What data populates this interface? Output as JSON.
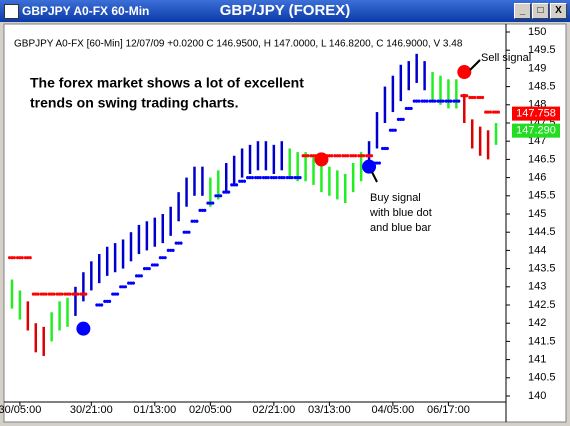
{
  "window_caption": "GBPJPY A0-FX 60-Min",
  "chart_data": {
    "type": "hilo",
    "title": "GBP/JPY (FOREX)",
    "info_line": "GBPJPY A0-FX [60-Min] 12/07/09 +0.0200 C 146.9500, H 147.0000, L 146.8200, C 146.9000, V 3.48",
    "annotation_lines": [
      "The forex market shows a lot of excellent",
      "trends on swing trading charts."
    ],
    "sell_label": "Sell signal",
    "buy_label_lines": [
      "Buy signal",
      "with blue dot",
      "and blue bar"
    ],
    "categories": [
      null,
      "30/05:00",
      null,
      null,
      null,
      null,
      null,
      null,
      null,
      null,
      "30/21:00",
      null,
      null,
      null,
      null,
      null,
      null,
      null,
      "01/13:00",
      null,
      null,
      null,
      null,
      null,
      null,
      "02/05:00",
      null,
      null,
      null,
      null,
      null,
      null,
      null,
      "02/21:00",
      null,
      null,
      null,
      null,
      null,
      null,
      "03/13:00",
      null,
      null,
      null,
      null,
      null,
      null,
      null,
      "04/05:00",
      null,
      null,
      null,
      null,
      null,
      null,
      "06/17:00",
      null,
      null,
      null,
      null,
      null,
      null
    ],
    "high": [
      143.2,
      142.9,
      142.6,
      142.0,
      141.9,
      142.3,
      142.6,
      142.7,
      143.0,
      143.4,
      143.7,
      143.9,
      144.1,
      144.2,
      144.3,
      144.5,
      144.7,
      144.8,
      144.9,
      145.0,
      145.2,
      145.6,
      146.0,
      146.3,
      146.3,
      146.0,
      146.2,
      146.4,
      146.6,
      146.8,
      146.9,
      147.0,
      147.0,
      146.9,
      147.0,
      146.8,
      146.7,
      146.7,
      146.6,
      146.4,
      146.3,
      146.2,
      146.1,
      146.4,
      146.7,
      147.0,
      147.8,
      148.5,
      148.8,
      149.1,
      149.2,
      149.4,
      149.2,
      148.9,
      148.8,
      148.7,
      148.7,
      148.3,
      147.6,
      147.4,
      147.3,
      147.5
    ],
    "low": [
      142.4,
      142.1,
      141.8,
      141.2,
      141.1,
      141.5,
      141.8,
      141.9,
      142.2,
      142.6,
      142.9,
      143.1,
      143.3,
      143.4,
      143.5,
      143.7,
      143.9,
      144.0,
      144.1,
      144.2,
      144.4,
      144.8,
      145.2,
      145.5,
      145.5,
      145.2,
      145.4,
      145.6,
      145.8,
      146.0,
      146.1,
      146.2,
      146.2,
      146.1,
      146.2,
      146.0,
      145.9,
      145.9,
      145.8,
      145.6,
      145.5,
      145.4,
      145.3,
      145.6,
      145.9,
      146.2,
      146.8,
      147.5,
      147.8,
      148.1,
      148.4,
      148.6,
      148.4,
      148.1,
      148.0,
      147.9,
      147.9,
      147.5,
      146.8,
      146.6,
      146.5,
      146.9
    ],
    "bar_colors": [
      "#22ee22",
      "#22ee22",
      "#dd0000",
      "#dd0000",
      "#dd0000",
      "#22ee22",
      "#22ee22",
      "#22ee22",
      "#0000cc",
      "#0000cc",
      "#0000cc",
      "#0000cc",
      "#0000cc",
      "#0000cc",
      "#0000cc",
      "#0000cc",
      "#0000cc",
      "#0000cc",
      "#0000cc",
      "#0000cc",
      "#0000cc",
      "#0000cc",
      "#0000cc",
      "#0000cc",
      "#0000cc",
      "#22ee22",
      "#22ee22",
      "#0000cc",
      "#0000cc",
      "#0000cc",
      "#0000cc",
      "#0000cc",
      "#0000cc",
      "#0000cc",
      "#0000cc",
      "#22ee22",
      "#22ee22",
      "#22ee22",
      "#22ee22",
      "#22ee22",
      "#22ee22",
      "#22ee22",
      "#22ee22",
      "#22ee22",
      "#22ee22",
      "#0000cc",
      "#0000cc",
      "#0000cc",
      "#0000cc",
      "#0000cc",
      "#0000cc",
      "#0000cc",
      "#0000cc",
      "#22ee22",
      "#22ee22",
      "#22ee22",
      "#22ee22",
      "#dd0000",
      "#dd0000",
      "#dd0000",
      "#dd0000",
      "#22ee22"
    ],
    "stop_series": [
      {
        "color": "#ff0000",
        "values": [
          143.8,
          143.8,
          143.8,
          142.8,
          142.8,
          142.8,
          142.8,
          142.8,
          142.8,
          142.8,
          null,
          null,
          null,
          null,
          null,
          null,
          null,
          null,
          null,
          null,
          null,
          null,
          null,
          null,
          null,
          null,
          null,
          null,
          null,
          null,
          null,
          null,
          null,
          null,
          null,
          null,
          null,
          146.6,
          146.6,
          146.6,
          146.6,
          146.6,
          146.6,
          146.6,
          146.6,
          146.6,
          null,
          null,
          null,
          null,
          null,
          null,
          null,
          null,
          null,
          null,
          null,
          148.25,
          148.2,
          148.2,
          147.8,
          147.8
        ]
      },
      {
        "color": "#0000ff",
        "values": [
          null,
          null,
          null,
          null,
          null,
          null,
          null,
          null,
          null,
          null,
          null,
          142.5,
          142.6,
          142.8,
          143.0,
          143.1,
          143.3,
          143.5,
          143.6,
          143.8,
          144.0,
          144.2,
          144.5,
          144.8,
          145.1,
          145.3,
          145.5,
          145.6,
          145.8,
          145.9,
          146.0,
          146.0,
          146.0,
          146.0,
          146.0,
          146.0,
          146.0,
          null,
          null,
          null,
          null,
          null,
          null,
          null,
          null,
          null,
          146.4,
          146.8,
          147.3,
          147.6,
          147.9,
          148.1,
          148.1,
          148.1,
          148.1,
          148.1,
          148.1,
          null,
          null,
          null,
          null,
          null
        ]
      }
    ],
    "signal_points": [
      {
        "x": 9,
        "value": 141.85,
        "color": "#0000ff"
      },
      {
        "x": 39,
        "value": 146.5,
        "color": "#ff0000"
      },
      {
        "x": 45,
        "value": 146.3,
        "color": "#0000ff"
      },
      {
        "x": 57,
        "value": 148.9,
        "color": "#ff0000"
      }
    ],
    "price_labels": [
      {
        "value": 147.758,
        "color": "#ff0000"
      },
      {
        "value": {
          "value": 147.29,
          "label": "147.290"
        },
        "color": "#22dd22"
      }
    ],
    "ylim": [
      140,
      150
    ],
    "yticks": [
      140,
      140.5,
      141,
      141.5,
      142,
      142.5,
      143,
      143.5,
      144,
      144.5,
      145,
      145.5,
      146,
      146.5,
      147,
      147.5,
      148,
      148.5,
      149,
      149.5,
      150
    ]
  }
}
